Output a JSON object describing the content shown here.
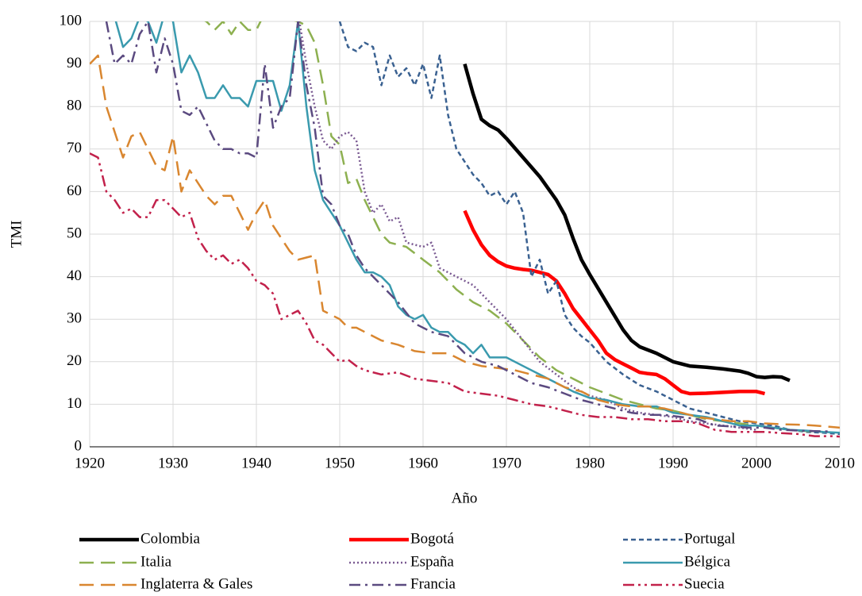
{
  "chart_data": {
    "type": "line",
    "x_label": "Año",
    "y_label": "TMI",
    "xlim": [
      1920,
      2010
    ],
    "xticks": [
      1920,
      1930,
      1940,
      1950,
      1960,
      1970,
      1980,
      1990,
      2000,
      2010
    ],
    "ylim": [
      0,
      100
    ],
    "yticks": [
      0,
      10,
      20,
      30,
      40,
      50,
      60,
      70,
      80,
      90,
      100
    ],
    "grid": true,
    "series": [
      {
        "name": "Colombia",
        "color": "#000000",
        "style": "solid-thick",
        "x": [
          1965,
          1966,
          1967,
          1968,
          1969,
          1970,
          1972,
          1974,
          1976,
          1977,
          1978,
          1979,
          1980,
          1982,
          1984,
          1985,
          1986,
          1988,
          1990,
          1992,
          1994,
          1996,
          1998,
          1999,
          2000,
          2001,
          2002,
          2003,
          2004
        ],
        "values": [
          90,
          83,
          77,
          75.5,
          74.5,
          72.5,
          68,
          63.5,
          58,
          54.5,
          49,
          44,
          40.5,
          34,
          27.5,
          25,
          23.5,
          22,
          20,
          19,
          18.7,
          18.3,
          17.8,
          17.3,
          16.5,
          16.3,
          16.5,
          16.4,
          15.6
        ]
      },
      {
        "name": "Bogotá",
        "color": "#ff0000",
        "style": "solid-thick",
        "x": [
          1965,
          1966,
          1967,
          1968,
          1969,
          1970,
          1971,
          1972,
          1973,
          1974,
          1975,
          1976,
          1977,
          1978,
          1979,
          1980,
          1981,
          1982,
          1983,
          1984,
          1985,
          1986,
          1987,
          1988,
          1989,
          1990,
          1991,
          1992,
          1994,
          1996,
          1998,
          2000,
          2001
        ],
        "values": [
          55.5,
          51,
          47.5,
          45,
          43.5,
          42.5,
          42,
          41.7,
          41.5,
          41,
          40.5,
          39,
          36,
          32.5,
          30,
          27.5,
          25,
          22,
          20.5,
          19.5,
          18.5,
          17.5,
          17.2,
          17,
          16,
          14.5,
          13,
          12.5,
          12.6,
          12.8,
          13,
          13,
          12.5
        ]
      },
      {
        "name": "Portugal",
        "color": "#3a6191",
        "style": "dash",
        "x": [
          1950,
          1951,
          1952,
          1953,
          1954,
          1955,
          1956,
          1957,
          1958,
          1959,
          1960,
          1961,
          1962,
          1963,
          1964,
          1965,
          1966,
          1967,
          1968,
          1969,
          1970,
          1971,
          1972,
          1973,
          1974,
          1975,
          1976,
          1977,
          1978,
          1979,
          1980,
          1982,
          1984,
          1986,
          1988,
          1990,
          1992,
          1994,
          1996,
          1998,
          2000,
          2002,
          2004,
          2006,
          2008,
          2010
        ],
        "values": [
          100,
          94,
          93,
          95,
          94,
          85,
          92,
          87,
          89,
          85,
          90,
          82,
          92,
          78,
          70,
          67,
          64,
          62,
          59,
          60,
          57,
          60,
          55,
          40,
          44,
          36,
          39,
          31,
          28,
          26,
          24.5,
          20,
          17,
          14.5,
          13,
          11,
          9,
          8,
          7,
          6,
          5.5,
          5,
          4,
          3.5,
          3.3,
          3
        ]
      },
      {
        "name": "Italia",
        "color": "#8db050",
        "style": "long-dash",
        "x": [
          1933,
          1934,
          1935,
          1936,
          1937,
          1938,
          1939,
          1940,
          1941,
          1945,
          1946,
          1947,
          1948,
          1949,
          1950,
          1951,
          1952,
          1953,
          1954,
          1955,
          1956,
          1958,
          1960,
          1962,
          1964,
          1966,
          1968,
          1970,
          1972,
          1974,
          1976,
          1978,
          1980,
          1982,
          1984,
          1986,
          1988,
          1990,
          1992,
          1994,
          1996,
          1998,
          2000,
          2002,
          2004,
          2006,
          2008
        ],
        "values": [
          101,
          100,
          98,
          100,
          97,
          100,
          98,
          98,
          102,
          100,
          99,
          95,
          85,
          73,
          71,
          62,
          63,
          58,
          54,
          50,
          48,
          47,
          44,
          41,
          37,
          34,
          32,
          29,
          25,
          21,
          18,
          16,
          14,
          12.5,
          11,
          10,
          9,
          8.5,
          7.5,
          6.5,
          6,
          5.5,
          5,
          4.5,
          4,
          3.7,
          3.5
        ]
      },
      {
        "name": "España",
        "color": "#7a5a92",
        "style": "dot",
        "x": [
          1945,
          1946,
          1947,
          1948,
          1949,
          1950,
          1951,
          1952,
          1953,
          1954,
          1955,
          1956,
          1957,
          1958,
          1960,
          1961,
          1962,
          1963,
          1964,
          1966,
          1968,
          1970,
          1972,
          1974,
          1976,
          1978,
          1980,
          1982,
          1984,
          1986,
          1988,
          1990,
          1992,
          1994,
          1996,
          1998,
          2000
        ],
        "values": [
          102,
          90,
          80,
          72,
          70,
          73,
          74,
          72,
          60,
          55,
          57,
          53,
          54,
          48,
          47,
          48,
          42,
          41,
          40,
          38,
          34,
          30,
          25,
          20,
          17,
          14,
          12,
          11,
          9,
          8,
          7.5,
          7,
          6,
          5.5,
          5,
          4.5,
          4
        ]
      },
      {
        "name": "Bélgica",
        "color": "#3a9aae",
        "style": "solid",
        "x": [
          1923,
          1924,
          1925,
          1926,
          1927,
          1928,
          1929,
          1930,
          1931,
          1932,
          1933,
          1934,
          1935,
          1936,
          1937,
          1938,
          1939,
          1940,
          1941,
          1942,
          1943,
          1944,
          1945,
          1946,
          1947,
          1948,
          1949,
          1950,
          1951,
          1952,
          1953,
          1954,
          1955,
          1956,
          1957,
          1958,
          1959,
          1960,
          1961,
          1962,
          1963,
          1964,
          1965,
          1966,
          1967,
          1968,
          1970,
          1972,
          1974,
          1976,
          1978,
          1980,
          1982,
          1984,
          1986,
          1988,
          1990,
          1992,
          1994,
          1996,
          1998,
          2000,
          2002,
          2004,
          2006,
          2008,
          2010
        ],
        "values": [
          101,
          94,
          96,
          101,
          100,
          95,
          102,
          100,
          88,
          92,
          88,
          82,
          82,
          85,
          82,
          82,
          80,
          86,
          86,
          86,
          79,
          85,
          100,
          80,
          65,
          58,
          55,
          52,
          48,
          44,
          41,
          41,
          40,
          38,
          33,
          31,
          30,
          31,
          28,
          27,
          27,
          25,
          24,
          22,
          24,
          21,
          21,
          19,
          17,
          15,
          13,
          11.5,
          11,
          10,
          9.5,
          9.5,
          8,
          7.5,
          7,
          6,
          5,
          5,
          4.5,
          4,
          3.8,
          3.5,
          3.3
        ]
      },
      {
        "name": "Inglaterra & Gales",
        "color": "#d9862f",
        "style": "long-dash",
        "x": [
          1920,
          1921,
          1922,
          1923,
          1924,
          1925,
          1926,
          1927,
          1928,
          1929,
          1930,
          1931,
          1932,
          1933,
          1934,
          1935,
          1936,
          1937,
          1938,
          1939,
          1940,
          1941,
          1942,
          1943,
          1944,
          1945,
          1946,
          1947,
          1948,
          1949,
          1950,
          1951,
          1952,
          1953,
          1955,
          1957,
          1959,
          1961,
          1963,
          1965,
          1967,
          1969,
          1971,
          1973,
          1975,
          1977,
          1979,
          1981,
          1983,
          1985,
          1987,
          1989,
          1991,
          1993,
          1995,
          1997,
          1999,
          2001,
          2003,
          2005,
          2007,
          2010
        ],
        "values": [
          90,
          92,
          80,
          74,
          68,
          73,
          74,
          70,
          66,
          65,
          73,
          60,
          65,
          62,
          59,
          57,
          59,
          59,
          55,
          51,
          55,
          58,
          52,
          49,
          46,
          44,
          44.5,
          45,
          32,
          31,
          30,
          28,
          28,
          27,
          25,
          24,
          22.5,
          22,
          22,
          20,
          19,
          18.5,
          18,
          17,
          16,
          14,
          13,
          11,
          10,
          9.5,
          9.5,
          9,
          8,
          7,
          6.5,
          6,
          6,
          5.5,
          5.3,
          5.2,
          5,
          4.5
        ]
      },
      {
        "name": "Francia",
        "color": "#5b4a80",
        "style": "dash-dot",
        "x": [
          1922,
          1923,
          1924,
          1925,
          1926,
          1927,
          1928,
          1929,
          1930,
          1931,
          1932,
          1933,
          1934,
          1935,
          1936,
          1937,
          1938,
          1939,
          1940,
          1941,
          1942,
          1943,
          1944,
          1945,
          1946,
          1947,
          1948,
          1949,
          1950,
          1951,
          1952,
          1953,
          1955,
          1957,
          1959,
          1961,
          1963,
          1965,
          1967,
          1969,
          1971,
          1973,
          1975,
          1977,
          1979,
          1981,
          1983,
          1985,
          1987,
          1989,
          1991,
          1993,
          1995,
          1997,
          1999,
          2001,
          2003,
          2005,
          2007,
          2009
        ],
        "values": [
          100,
          90,
          92,
          90,
          97,
          100,
          88,
          96,
          90,
          79,
          78,
          80,
          76,
          72,
          70,
          70,
          69,
          69,
          68,
          90,
          75,
          80,
          82,
          100,
          85,
          75,
          59,
          57,
          52,
          50,
          45,
          42,
          38,
          34,
          29,
          27,
          26,
          22,
          20,
          19,
          17,
          15,
          14,
          12.5,
          11,
          10,
          9,
          8,
          7.5,
          7.5,
          7,
          6.5,
          5,
          4.8,
          4.5,
          4.5,
          4,
          3.8,
          3.7,
          3.6
        ]
      },
      {
        "name": "Suecia",
        "color": "#c2214b",
        "style": "dash-dot-dot",
        "x": [
          1920,
          1921,
          1922,
          1923,
          1924,
          1925,
          1926,
          1927,
          1928,
          1929,
          1930,
          1931,
          1932,
          1933,
          1934,
          1935,
          1936,
          1937,
          1938,
          1939,
          1940,
          1941,
          1942,
          1943,
          1944,
          1945,
          1946,
          1947,
          1948,
          1949,
          1950,
          1951,
          1952,
          1953,
          1955,
          1957,
          1959,
          1961,
          1963,
          1965,
          1967,
          1969,
          1971,
          1973,
          1975,
          1977,
          1979,
          1981,
          1983,
          1985,
          1987,
          1989,
          1991,
          1993,
          1995,
          1997,
          1999,
          2001,
          2003,
          2005,
          2007,
          2009,
          2010
        ],
        "values": [
          69,
          68,
          60,
          58,
          55,
          56,
          54,
          54,
          58,
          58,
          56,
          54,
          55,
          49,
          46,
          44,
          45,
          43,
          44,
          42,
          39,
          38,
          36,
          30,
          31,
          32,
          29,
          25,
          24,
          22,
          20,
          20.5,
          19,
          18,
          17,
          17.5,
          16,
          15.5,
          15,
          13,
          12.5,
          12,
          11,
          10,
          9.5,
          8.5,
          7.5,
          7,
          7,
          6.5,
          6.5,
          6,
          6,
          5.5,
          4,
          3.5,
          3.5,
          3.5,
          3.2,
          3,
          2.5,
          2.5,
          2.4
        ]
      }
    ]
  }
}
